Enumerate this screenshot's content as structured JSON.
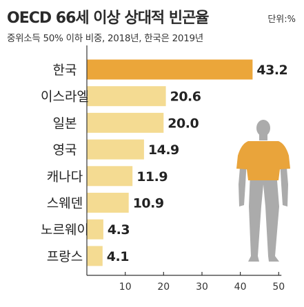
{
  "title": "OECD 66세 이상 상대적 빈곤율",
  "unit": "단위:%",
  "subtitle": "중위소득 50% 이하 비중, 2018년, 한국은 2019년",
  "chart_data": {
    "type": "bar",
    "orientation": "horizontal",
    "categories": [
      "한국",
      "이스라엘",
      "일본",
      "영국",
      "캐나다",
      "스웨덴",
      "노르웨이",
      "프랑스"
    ],
    "values": [
      43.2,
      20.6,
      20.0,
      14.9,
      11.9,
      10.9,
      4.3,
      4.1
    ],
    "value_labels": [
      "43.2",
      "20.6",
      "20.0",
      "14.9",
      "11.9",
      "10.9",
      "4.3",
      "4.1"
    ],
    "xticks": [
      10,
      20,
      30,
      40,
      50
    ],
    "xlim": [
      0,
      50
    ],
    "grid": false,
    "colors": {
      "highlight": "#EBA63A",
      "bar": "#F4DB92",
      "axis": "#333333",
      "figure": "#ABABAB",
      "shirt": "#E9A43B"
    }
  }
}
